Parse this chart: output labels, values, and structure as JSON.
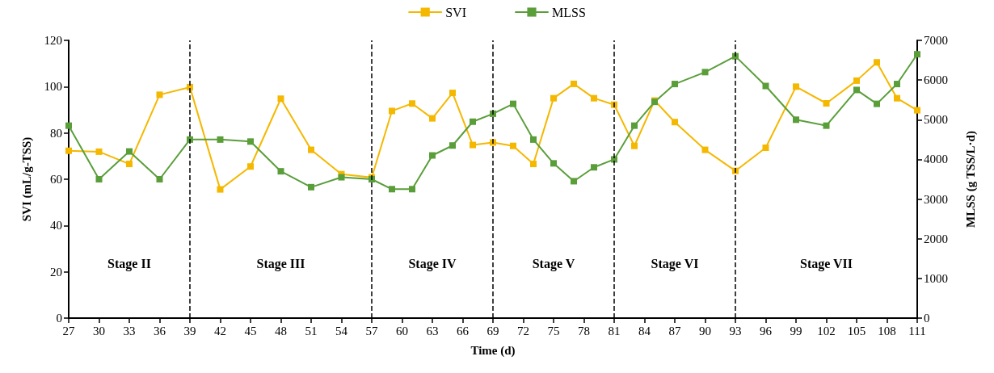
{
  "chart_data": {
    "type": "line",
    "xlabel": "Time (d)",
    "ylabel": "SVI (mL/g-TSS)",
    "y2label": "MLSS (g TSS/L·d)",
    "xlim": [
      27,
      111
    ],
    "xticks": [
      27,
      30,
      33,
      36,
      39,
      42,
      45,
      48,
      51,
      54,
      57,
      60,
      63,
      66,
      69,
      72,
      75,
      78,
      81,
      84,
      87,
      90,
      93,
      96,
      99,
      102,
      105,
      108,
      111
    ],
    "ylim": [
      0,
      120
    ],
    "yticks": [
      0,
      20,
      40,
      60,
      80,
      100,
      120
    ],
    "y2lim": [
      0,
      7000
    ],
    "y2ticks": [
      0,
      1000,
      2000,
      3000,
      4000,
      5000,
      6000,
      7000
    ],
    "x": [
      27,
      30,
      33,
      36,
      39,
      42,
      45,
      48,
      51,
      54,
      57,
      59,
      61,
      63,
      65,
      67,
      69,
      71,
      73,
      75,
      77,
      79,
      81,
      83,
      85,
      87,
      90,
      93,
      96,
      99,
      102,
      105,
      107,
      109,
      111
    ],
    "series": [
      {
        "name": "SVI",
        "color": "#f5b800",
        "values": [
          72.3,
          71.9,
          66.6,
          96.5,
          99.8,
          55.6,
          65.5,
          94.8,
          72.7,
          62.2,
          60.8,
          89.5,
          92.7,
          86.3,
          97.3,
          74.8,
          75.9,
          74.4,
          66.6,
          95.0,
          101.2,
          95.0,
          92.2,
          74.4,
          94.0,
          84.7,
          72.7,
          63.6,
          73.6,
          100.0,
          92.8,
          102.6,
          110.5,
          95.0,
          89.8
        ]
      },
      {
        "name": "MLSS",
        "color": "#5a9e3a",
        "axis": "y2",
        "values": [
          4850,
          3500,
          4200,
          3500,
          4500,
          4500,
          4450,
          3700,
          3300,
          3550,
          3500,
          3250,
          3250,
          4100,
          4350,
          4950,
          5150,
          5400,
          4500,
          3900,
          3450,
          3800,
          4000,
          4850,
          5450,
          5900,
          6200,
          6600,
          5850,
          5000,
          4850,
          5750,
          5400,
          5900,
          6650
        ]
      }
    ],
    "marker": "square",
    "line_style": "solid",
    "grid": false,
    "legend": "top",
    "ref_lines": [
      {
        "axis": "x",
        "value": 39,
        "color": "#000000",
        "line_style": "dashed"
      },
      {
        "axis": "x",
        "value": 57,
        "color": "#000000",
        "line_style": "dashed"
      },
      {
        "axis": "x",
        "value": 69,
        "color": "#000000",
        "line_style": "dashed"
      },
      {
        "axis": "x",
        "value": 81,
        "color": "#000000",
        "line_style": "dashed"
      },
      {
        "axis": "x",
        "value": 93,
        "color": "#000000",
        "line_style": "dashed"
      }
    ],
    "annotations": [
      "Stage II",
      "Stage III",
      "Stage IV",
      "Stage V",
      "Stage VI",
      "Stage VII"
    ]
  }
}
